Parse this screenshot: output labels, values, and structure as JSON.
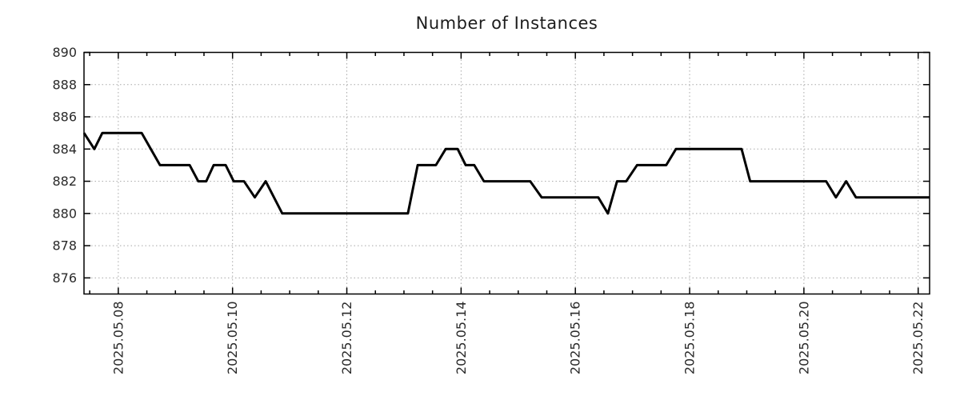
{
  "chart_data": {
    "type": "line",
    "title": "Number of Instances",
    "xlabel": "",
    "ylabel": "",
    "x_unit": "day of May 2025",
    "x_domain": [
      7.4,
      22.2
    ],
    "y_domain": [
      875,
      890
    ],
    "grid": "dotted",
    "legend": "none",
    "x_major_ticks": [
      {
        "value": 8,
        "label": "2025.05.08"
      },
      {
        "value": 10,
        "label": "2025.05.10"
      },
      {
        "value": 12,
        "label": "2025.05.12"
      },
      {
        "value": 14,
        "label": "2025.05.14"
      },
      {
        "value": 16,
        "label": "2025.05.16"
      },
      {
        "value": 18,
        "label": "2025.05.18"
      },
      {
        "value": 20,
        "label": "2025.05.20"
      },
      {
        "value": 22,
        "label": "2025.05.22"
      }
    ],
    "x_minor_step": 0.5,
    "y_ticks": [
      876,
      878,
      880,
      882,
      884,
      886,
      888,
      890
    ],
    "colors": {
      "line": "#000000",
      "grid": "#a8a8a8",
      "axis": "#000000",
      "text": "#2a2a2a",
      "background": "#ffffff"
    },
    "series": [
      {
        "name": "instances",
        "color": "#000000",
        "points": [
          [
            7.4,
            885
          ],
          [
            7.58,
            884
          ],
          [
            7.72,
            885
          ],
          [
            8.41,
            885
          ],
          [
            8.73,
            883
          ],
          [
            9.25,
            883
          ],
          [
            9.4,
            882
          ],
          [
            9.54,
            882
          ],
          [
            9.67,
            883
          ],
          [
            9.88,
            883
          ],
          [
            10.02,
            882
          ],
          [
            10.2,
            882
          ],
          [
            10.39,
            881
          ],
          [
            10.58,
            882
          ],
          [
            10.87,
            880
          ],
          [
            13.07,
            880
          ],
          [
            13.24,
            883
          ],
          [
            13.56,
            883
          ],
          [
            13.73,
            884
          ],
          [
            13.94,
            884
          ],
          [
            14.08,
            883
          ],
          [
            14.23,
            883
          ],
          [
            14.4,
            882
          ],
          [
            15.21,
            882
          ],
          [
            15.41,
            881
          ],
          [
            16.4,
            881
          ],
          [
            16.57,
            880
          ],
          [
            16.73,
            882
          ],
          [
            16.89,
            882
          ],
          [
            17.08,
            883
          ],
          [
            17.59,
            883
          ],
          [
            17.76,
            884
          ],
          [
            18.91,
            884
          ],
          [
            19.06,
            882
          ],
          [
            20.39,
            882
          ],
          [
            20.56,
            881
          ],
          [
            20.74,
            882
          ],
          [
            20.91,
            881
          ],
          [
            22.2,
            881
          ]
        ]
      }
    ]
  }
}
